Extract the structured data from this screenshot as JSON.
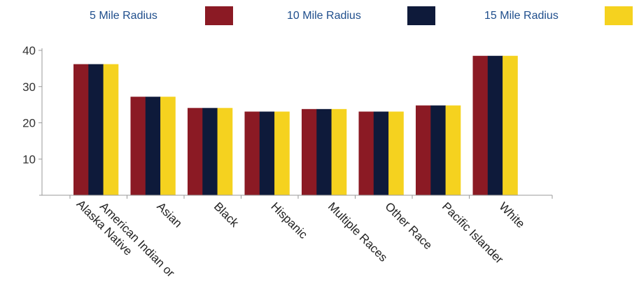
{
  "chart_data": {
    "type": "bar",
    "title": "",
    "xlabel": "",
    "ylabel": "",
    "ylim": [
      0,
      40
    ],
    "yticks": [
      10,
      20,
      30,
      40
    ],
    "grid": false,
    "legend_position": "top",
    "categories": [
      [
        "American Indian or",
        "Alaska Native"
      ],
      [
        "Asian"
      ],
      [
        "Black"
      ],
      [
        "Hispanic"
      ],
      [
        "Multiple Races"
      ],
      [
        "Other Race"
      ],
      [
        "Pacific Islander"
      ],
      [
        "White"
      ]
    ],
    "series": [
      {
        "name": "5 Mile Radius",
        "color": "#8B1A24",
        "values": [
          36.2,
          27.2,
          24.1,
          23.1,
          23.8,
          23.1,
          24.8,
          38.5
        ]
      },
      {
        "name": "10 Mile Radius",
        "color": "#0E1A3A",
        "values": [
          36.2,
          27.2,
          24.1,
          23.1,
          23.8,
          23.1,
          24.8,
          38.5
        ]
      },
      {
        "name": "15 Mile Radius",
        "color": "#F5D21F",
        "values": [
          36.2,
          27.2,
          24.1,
          23.1,
          23.8,
          23.1,
          24.8,
          38.5
        ]
      }
    ],
    "legend_text_color": "#1F4E8C",
    "axis_color": "#999999"
  }
}
